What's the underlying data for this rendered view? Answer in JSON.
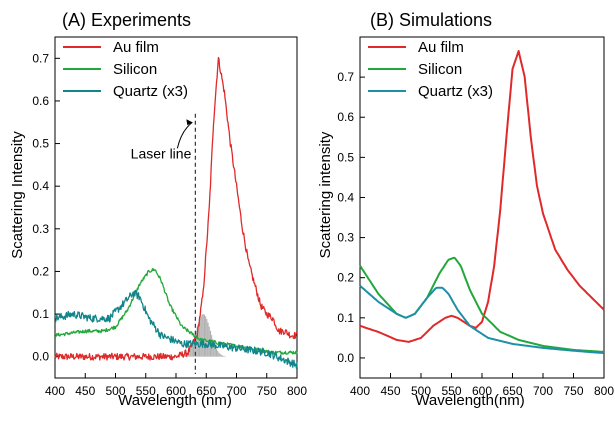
{
  "chart_data": [
    {
      "type": "line",
      "title": "(A) Experiments",
      "xlabel": "Wavelength (nm)",
      "ylabel": "Scattering Intensity",
      "xlim": [
        400,
        800
      ],
      "ylim": [
        -0.05,
        0.75
      ],
      "xticks": [
        400,
        450,
        500,
        550,
        600,
        650,
        700,
        750,
        800
      ],
      "yticks": [
        0.0,
        0.1,
        0.2,
        0.3,
        0.4,
        0.5,
        0.6,
        0.7
      ],
      "ytick_labels": [
        "0.0",
        "0.1",
        "0.2",
        "0.3",
        "0.4",
        "0.5",
        "0.6",
        "0.7"
      ],
      "legend_position": "top-left",
      "annotation": {
        "text": "Laser line",
        "x": 632
      },
      "laser_line_x": 632,
      "laser_spectrum": {
        "center": 645,
        "width": 12,
        "peak": 0.1,
        "color": "#b0b0b0"
      },
      "series": [
        {
          "name": "Au film",
          "color": "#e02a2a",
          "noise": 0.008,
          "x": [
            400,
            450,
            500,
            540,
            570,
            600,
            620,
            635,
            645,
            655,
            662,
            670,
            680,
            690,
            700,
            710,
            720,
            730,
            740,
            750,
            760,
            770,
            780,
            790,
            800
          ],
          "y": [
            0.0,
            0.0,
            0.0,
            0.0,
            0.0,
            0.0,
            0.01,
            0.05,
            0.15,
            0.35,
            0.55,
            0.7,
            0.62,
            0.5,
            0.4,
            0.3,
            0.22,
            0.17,
            0.12,
            0.1,
            0.09,
            0.06,
            0.06,
            0.05,
            0.05
          ]
        },
        {
          "name": "Silicon",
          "color": "#22a83a",
          "noise": 0.004,
          "x": [
            400,
            450,
            480,
            500,
            520,
            540,
            555,
            565,
            575,
            590,
            610,
            640,
            680,
            720,
            760,
            800
          ],
          "y": [
            0.05,
            0.06,
            0.06,
            0.07,
            0.11,
            0.17,
            0.2,
            0.205,
            0.18,
            0.12,
            0.07,
            0.04,
            0.03,
            0.02,
            0.01,
            0.01
          ]
        },
        {
          "name": "Quartz (x3)",
          "color": "#12858a",
          "noise": 0.009,
          "x": [
            400,
            430,
            460,
            490,
            510,
            530,
            540,
            555,
            575,
            610,
            650,
            700,
            750,
            800
          ],
          "y": [
            0.09,
            0.1,
            0.09,
            0.09,
            0.12,
            0.15,
            0.14,
            0.09,
            0.05,
            0.03,
            0.03,
            0.02,
            0.01,
            -0.02
          ]
        }
      ]
    },
    {
      "type": "line",
      "title": "(B) Simulations",
      "xlabel": "Wavelength(nm)",
      "ylabel": "Scattering intensity",
      "xlim": [
        400,
        800
      ],
      "ylim": [
        -0.05,
        0.8
      ],
      "xticks": [
        400,
        450,
        500,
        550,
        600,
        650,
        700,
        750,
        800
      ],
      "yticks": [
        0.0,
        0.1,
        0.2,
        0.3,
        0.4,
        0.5,
        0.6,
        0.7
      ],
      "ytick_labels": [
        "0.0",
        "0.1",
        "0.2",
        "0.3",
        "0.4",
        "0.5",
        "0.6",
        "0.7"
      ],
      "legend_position": "top-left",
      "series": [
        {
          "name": "Au film",
          "color": "#e02a2a",
          "x": [
            400,
            430,
            460,
            480,
            500,
            520,
            540,
            550,
            560,
            570,
            580,
            590,
            600,
            610,
            620,
            630,
            640,
            650,
            660,
            670,
            680,
            690,
            700,
            720,
            740,
            760,
            780,
            800
          ],
          "y": [
            0.08,
            0.065,
            0.045,
            0.04,
            0.05,
            0.08,
            0.1,
            0.105,
            0.1,
            0.09,
            0.08,
            0.075,
            0.09,
            0.14,
            0.23,
            0.37,
            0.55,
            0.72,
            0.765,
            0.7,
            0.55,
            0.43,
            0.36,
            0.27,
            0.22,
            0.18,
            0.15,
            0.12
          ]
        },
        {
          "name": "Silicon",
          "color": "#22a83a",
          "x": [
            400,
            430,
            460,
            475,
            490,
            510,
            530,
            545,
            555,
            565,
            580,
            600,
            630,
            660,
            700,
            750,
            800
          ],
          "y": [
            0.23,
            0.16,
            0.11,
            0.1,
            0.11,
            0.15,
            0.21,
            0.245,
            0.25,
            0.23,
            0.17,
            0.11,
            0.065,
            0.045,
            0.03,
            0.02,
            0.015
          ]
        },
        {
          "name": "Quartz (x3)",
          "color": "#1f8fa6",
          "x": [
            400,
            430,
            460,
            475,
            490,
            510,
            525,
            535,
            545,
            560,
            580,
            610,
            650,
            700,
            750,
            800
          ],
          "y": [
            0.18,
            0.14,
            0.11,
            0.1,
            0.11,
            0.15,
            0.175,
            0.175,
            0.16,
            0.12,
            0.08,
            0.05,
            0.035,
            0.025,
            0.018,
            0.012
          ]
        }
      ]
    }
  ]
}
